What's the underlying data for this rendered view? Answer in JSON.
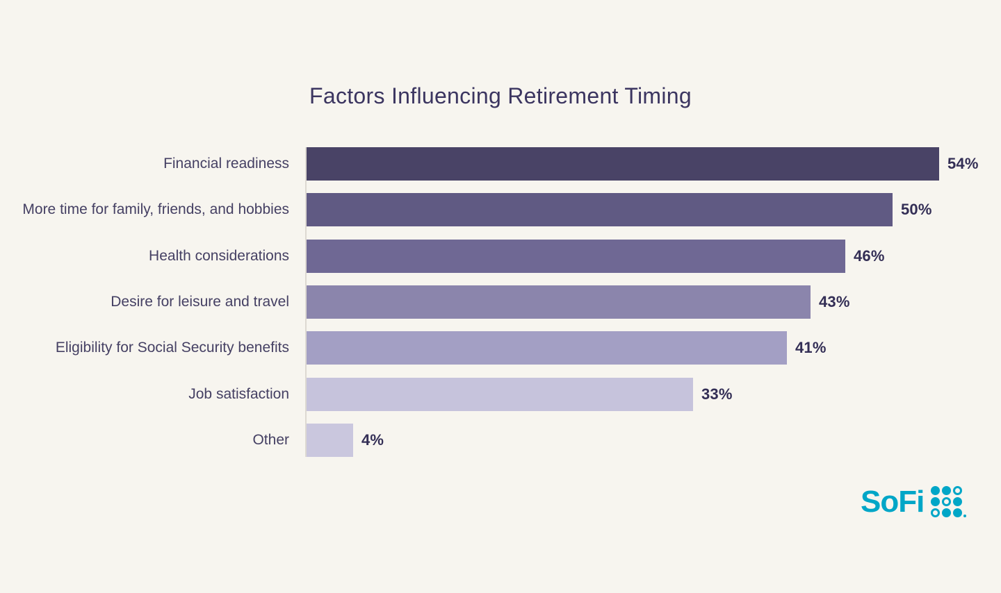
{
  "page": {
    "background_color": "#f7f5ef"
  },
  "chart_data": {
    "type": "bar",
    "orientation": "horizontal",
    "title": "Factors Influencing Retirement Timing",
    "categories": [
      "Financial readiness",
      "More time for family, friends, and hobbies",
      "Health considerations",
      "Desire for leisure and travel",
      "Eligibility for Social Security benefits",
      "Job satisfaction",
      "Other"
    ],
    "values": [
      54,
      50,
      46,
      43,
      41,
      33,
      4
    ],
    "value_labels": [
      "54%",
      "50%",
      "46%",
      "43%",
      "41%",
      "33%",
      "4%"
    ],
    "bar_colors": [
      "#494366",
      "#605a83",
      "#6f6894",
      "#8b85ac",
      "#a39fc4",
      "#c6c3dc",
      "#cac7de"
    ],
    "xlabel": "",
    "ylabel": "",
    "xlim": [
      0,
      57
    ],
    "grid": false,
    "legend": false,
    "value_label_position": "end-of-bar",
    "title_color": "#3b3560",
    "label_color": "#454063",
    "value_color": "#332e55",
    "axis_line_color": "#ddd9d2"
  },
  "branding": {
    "logo_text": "SoFi",
    "logo_color": "#00a6c7",
    "dot_pattern": [
      [
        "filled",
        "filled",
        "outline"
      ],
      [
        "filled",
        "outline",
        "filled"
      ],
      [
        "outline",
        "filled",
        "filled"
      ]
    ]
  }
}
